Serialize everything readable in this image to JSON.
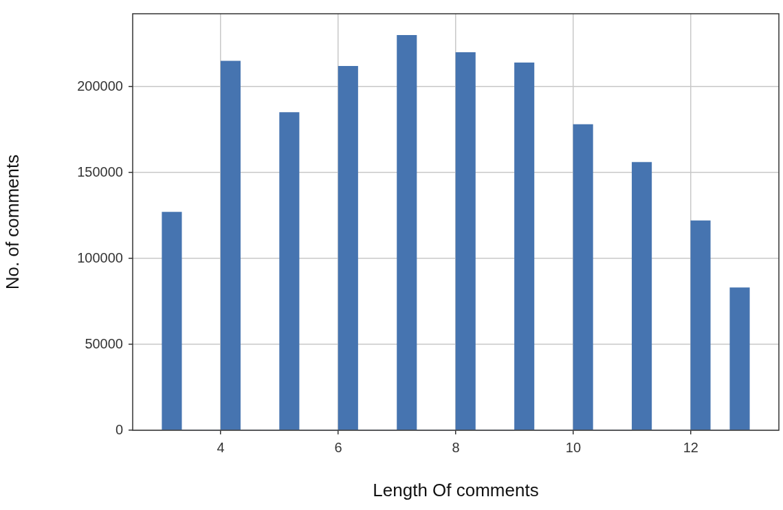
{
  "chart_data": {
    "type": "histogram",
    "xlabel": "Length Of comments",
    "ylabel": "No. of comments",
    "color": "#4674b0",
    "bins": [
      3,
      3.333,
      3.667,
      4,
      4.333,
      4.667,
      5,
      5.333,
      5.667,
      6,
      6.333,
      6.667,
      7,
      7.333,
      7.667,
      8,
      8.333,
      8.667,
      9,
      9.333,
      9.667,
      10,
      10.333,
      10.667,
      11,
      11.333,
      11.667,
      12,
      12.333,
      12.667,
      13
    ],
    "values": [
      127000,
      0,
      0,
      215000,
      0,
      0,
      185000,
      0,
      0,
      212000,
      0,
      0,
      230000,
      0,
      0,
      220000,
      0,
      0,
      214000,
      0,
      0,
      178000,
      0,
      0,
      156000,
      0,
      0,
      122000,
      0,
      83000
    ],
    "xlim": [
      2.5,
      13.5
    ],
    "xticks": [
      4,
      6,
      8,
      10,
      12
    ],
    "ylim": [
      0,
      242500
    ],
    "yticks": [
      0,
      50000,
      100000,
      150000,
      200000
    ],
    "grid": true,
    "legend": false
  }
}
